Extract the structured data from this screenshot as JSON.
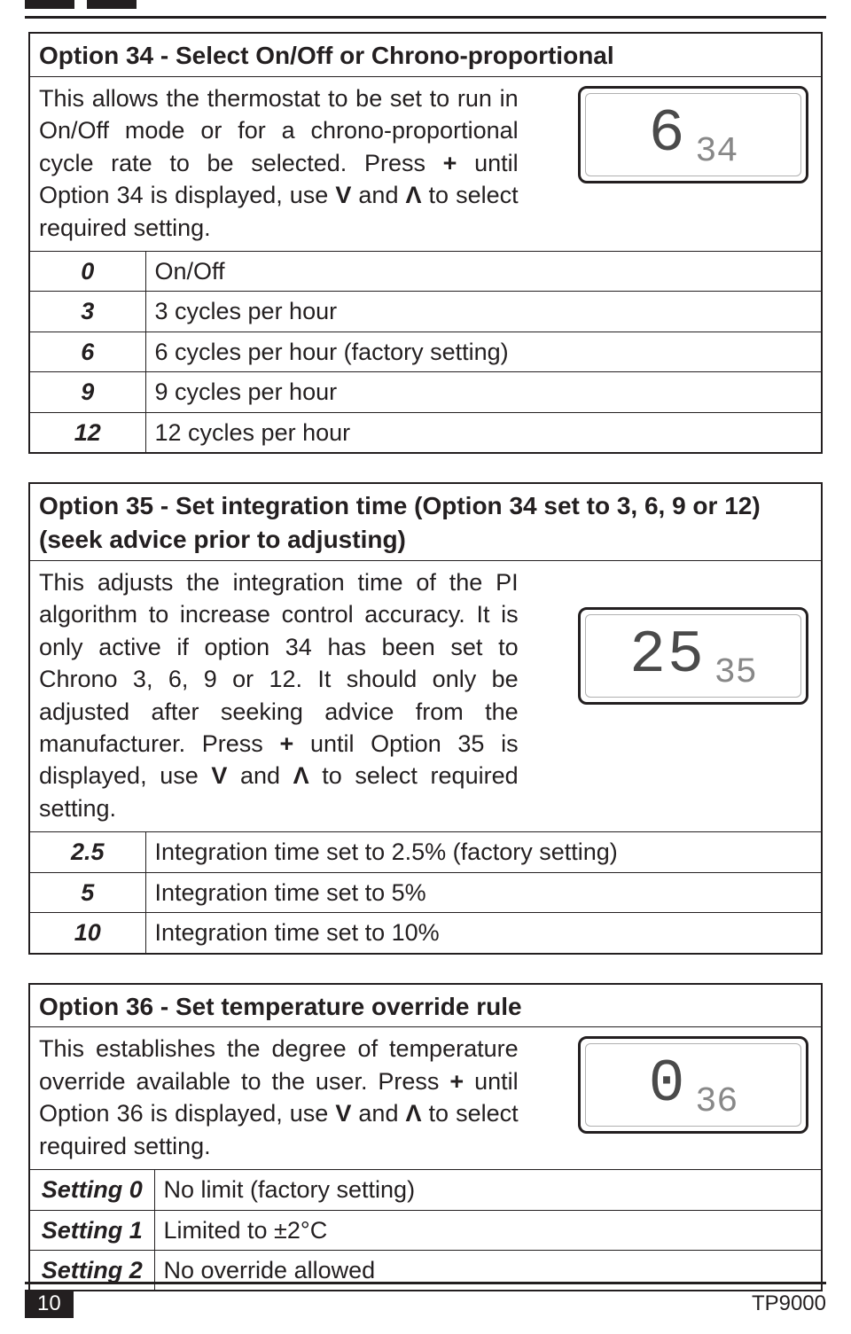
{
  "option34": {
    "title": "Option 34 - Select On/Off or Chrono-proportional",
    "desc_html": "This allows the thermostat to be set to run in On/Off mode or for a chrono-proportional cycle rate to be selected. Press <span class='b'>+</span> until Option 34 is displayed, use <span class='b'>V</span> and <span class='b'>Λ</span> to select required setting.",
    "lcd_big": "6",
    "lcd_small": "34",
    "rows": [
      {
        "k": "0",
        "v": "On/Off"
      },
      {
        "k": "3",
        "v": "3 cycles per hour"
      },
      {
        "k": "6",
        "v": "6 cycles per hour (factory setting)"
      },
      {
        "k": "9",
        "v": "9 cycles per hour"
      },
      {
        "k": "12",
        "v": "12 cycles per hour"
      }
    ]
  },
  "option35": {
    "title": "Option 35 - Set integration time (Option 34 set to 3, 6, 9 or 12) (seek advice prior to adjusting)",
    "desc_html": "This adjusts the integration time of the PI algorithm to increase control accuracy. It is only active if option 34 has been set to Chrono 3, 6, 9 or 12. It should only be adjusted after seeking advice from the manufacturer. Press <span class='b'>+</span> until Option 35 is displayed, use <span class='b'>V</span> and <span class='b'>Λ</span> to select required setting.",
    "lcd_big": "25",
    "lcd_small": "35",
    "rows": [
      {
        "k": "2.5",
        "v": "Integration time set to 2.5% (factory setting)"
      },
      {
        "k": "5",
        "v": "Integration time set to 5%"
      },
      {
        "k": "10",
        "v": "Integration time set to 10%"
      }
    ]
  },
  "option36": {
    "title": "Option 36 - Set temperature override rule",
    "desc_html": "This establishes the degree of temperature override available to the user. Press <span class='b'>+</span> until Option 36 is displayed, use <span class='b'>V</span> and <span class='b'>Λ</span> to select required setting.",
    "lcd_big": "0",
    "lcd_small": "36",
    "rows": [
      {
        "k": "Setting 0",
        "v": "No limit (factory setting)"
      },
      {
        "k": "Setting 1",
        "v": "Limited to ±2°C"
      },
      {
        "k": "Setting 2",
        "v": "No override allowed"
      }
    ]
  },
  "footer": {
    "page": "10",
    "model": "TP9000"
  }
}
